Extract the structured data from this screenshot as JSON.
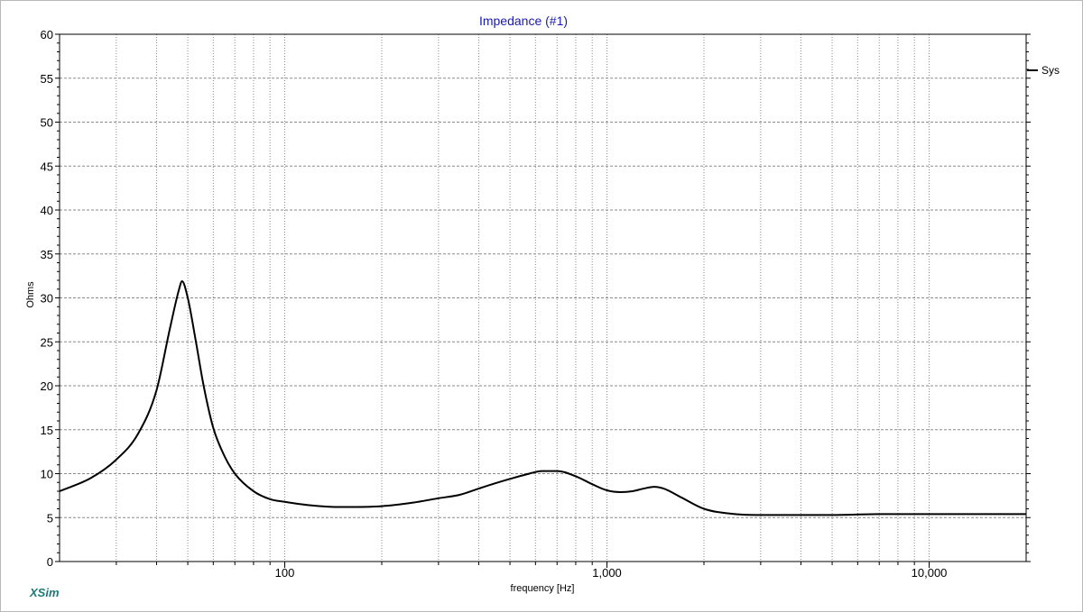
{
  "chart_data": {
    "type": "line",
    "title": "Impedance (#1)",
    "xlabel": "frequency [Hz]",
    "ylabel": "Ohms",
    "x_scale": "log",
    "xlim": [
      20,
      20000
    ],
    "ylim": [
      0,
      60
    ],
    "x_ticks": [
      {
        "value": 100,
        "label": "100"
      },
      {
        "value": 1000,
        "label": "1,000"
      },
      {
        "value": 10000,
        "label": "10,000"
      }
    ],
    "y_ticks": [
      0,
      5,
      10,
      15,
      20,
      25,
      30,
      35,
      40,
      45,
      50,
      55,
      60
    ],
    "grid": true,
    "legend_position": "right",
    "series": [
      {
        "name": "Sys",
        "color": "#000000",
        "x": [
          20,
          25,
          30,
          35,
          40,
          44,
          47,
          48,
          50,
          53,
          56,
          60,
          65,
          70,
          80,
          90,
          100,
          120,
          150,
          200,
          250,
          300,
          350,
          400,
          450,
          500,
          560,
          630,
          700,
          800,
          900,
          1000,
          1100,
          1200,
          1300,
          1400,
          1500,
          1700,
          2000,
          2500,
          3000,
          4000,
          5000,
          7000,
          10000,
          15000,
          20000
        ],
        "y": [
          8.0,
          9.5,
          11.6,
          14.5,
          19.5,
          26.5,
          31.0,
          31.9,
          30.0,
          25.0,
          20.0,
          15.2,
          12.0,
          10.0,
          8.0,
          7.1,
          6.8,
          6.4,
          6.2,
          6.3,
          6.7,
          7.2,
          7.6,
          8.3,
          8.9,
          9.4,
          9.9,
          10.3,
          10.3,
          9.7,
          8.8,
          8.1,
          7.9,
          8.0,
          8.3,
          8.5,
          8.3,
          7.3,
          6.0,
          5.4,
          5.3,
          5.3,
          5.3,
          5.4,
          5.4,
          5.4,
          5.4
        ]
      }
    ]
  },
  "branding": {
    "text": "XSim",
    "color": "#1f7a7a"
  },
  "colors": {
    "title": "#1a1ab0",
    "grid": "#8a8a8a",
    "curve": "#000000"
  }
}
